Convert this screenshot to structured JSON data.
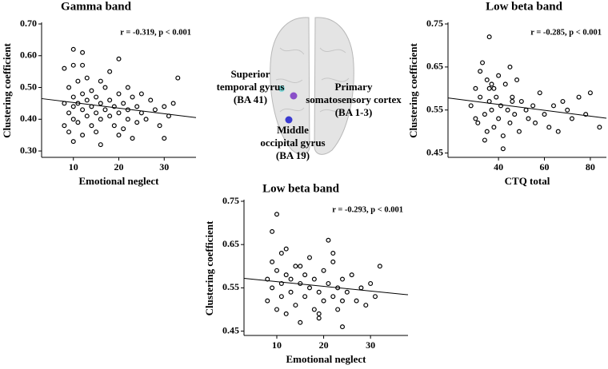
{
  "chart_data": [
    {
      "type": "scatter",
      "title": "Gamma band",
      "xlabel": "Emotional neglect",
      "ylabel": "Clustering coefficient",
      "annotation": "r = -0.319, p < 0.001",
      "x": [
        8,
        8,
        8,
        9,
        9,
        9,
        10,
        10,
        10,
        10,
        10,
        11,
        11,
        11,
        12,
        12,
        12,
        12,
        13,
        13,
        13,
        14,
        14,
        14,
        15,
        15,
        15,
        16,
        16,
        16,
        17,
        17,
        18,
        18,
        18,
        19,
        19,
        20,
        20,
        20,
        21,
        21,
        22,
        22,
        22,
        23,
        23,
        24,
        24,
        25,
        25,
        26,
        27,
        28,
        29,
        30,
        30,
        31,
        32,
        33,
        10,
        12,
        16,
        20
      ],
      "values": [
        0.45,
        0.38,
        0.56,
        0.5,
        0.42,
        0.36,
        0.47,
        0.44,
        0.4,
        0.62,
        0.33,
        0.52,
        0.45,
        0.39,
        0.48,
        0.43,
        0.57,
        0.35,
        0.46,
        0.41,
        0.53,
        0.44,
        0.38,
        0.49,
        0.47,
        0.42,
        0.36,
        0.45,
        0.4,
        0.32,
        0.5,
        0.43,
        0.46,
        0.41,
        0.55,
        0.44,
        0.38,
        0.48,
        0.42,
        0.59,
        0.45,
        0.37,
        0.43,
        0.4,
        0.5,
        0.47,
        0.34,
        0.44,
        0.39,
        0.42,
        0.48,
        0.4,
        0.46,
        0.43,
        0.38,
        0.44,
        0.34,
        0.41,
        0.45,
        0.53,
        0.57,
        0.61,
        0.52,
        0.35
      ],
      "trendline": {
        "x": [
          3,
          37
        ],
        "y": [
          0.465,
          0.405
        ]
      },
      "xlim": [
        3,
        37
      ],
      "ylim": [
        0.28,
        0.7
      ],
      "xticks": [
        10,
        20,
        30
      ],
      "yticks": [
        {
          "value": 0.3,
          "label": "0.30"
        },
        {
          "value": 0.4,
          "label": "0.40"
        },
        {
          "value": 0.5,
          "label": "0.50"
        },
        {
          "value": 0.6,
          "label": "0.60"
        },
        {
          "value": 0.7,
          "label": "0.70"
        }
      ]
    },
    {
      "type": "scatter",
      "title": "Low beta band",
      "xlabel": "CTQ total",
      "ylabel": "Clustering coefficient",
      "annotation": "r = -0.285, p < 0.001",
      "x": [
        28,
        30,
        31,
        32,
        33,
        34,
        35,
        35,
        36,
        36,
        37,
        38,
        38,
        39,
        40,
        40,
        41,
        42,
        43,
        44,
        45,
        45,
        46,
        47,
        48,
        49,
        50,
        52,
        53,
        55,
        56,
        58,
        60,
        62,
        64,
        66,
        68,
        70,
        72,
        75,
        78,
        80,
        84,
        32,
        34,
        37,
        42,
        46,
        30,
        36
      ],
      "values": [
        0.56,
        0.6,
        0.52,
        0.58,
        0.66,
        0.54,
        0.62,
        0.5,
        0.57,
        0.72,
        0.55,
        0.6,
        0.51,
        0.58,
        0.63,
        0.53,
        0.56,
        0.49,
        0.61,
        0.55,
        0.65,
        0.52,
        0.58,
        0.54,
        0.62,
        0.5,
        0.57,
        0.55,
        0.53,
        0.56,
        0.52,
        0.59,
        0.54,
        0.51,
        0.56,
        0.5,
        0.57,
        0.55,
        0.53,
        0.58,
        0.54,
        0.59,
        0.51,
        0.64,
        0.48,
        0.61,
        0.46,
        0.57,
        0.53,
        0.6
      ],
      "trendline": {
        "x": [
          18,
          87
        ],
        "y": [
          0.578,
          0.531
        ]
      },
      "xlim": [
        18,
        87
      ],
      "ylim": [
        0.44,
        0.75
      ],
      "xticks": [
        40,
        60,
        80
      ],
      "yticks": [
        0.45,
        0.55,
        0.65,
        0.75
      ]
    },
    {
      "type": "scatter",
      "title": "Low beta band",
      "xlabel": "Emotional neglect",
      "ylabel": "Clustering coefficient",
      "annotation": "r = -0.293, p < 0.001",
      "x": [
        8,
        8,
        9,
        9,
        10,
        10,
        10,
        11,
        11,
        12,
        12,
        13,
        13,
        14,
        14,
        15,
        15,
        16,
        16,
        17,
        17,
        18,
        18,
        19,
        19,
        20,
        20,
        21,
        21,
        22,
        22,
        23,
        23,
        24,
        24,
        25,
        26,
        27,
        28,
        29,
        30,
        31,
        32,
        9,
        11,
        15,
        19,
        22,
        24,
        12
      ],
      "values": [
        0.57,
        0.52,
        0.61,
        0.55,
        0.59,
        0.5,
        0.72,
        0.56,
        0.53,
        0.64,
        0.49,
        0.57,
        0.54,
        0.6,
        0.51,
        0.56,
        0.47,
        0.58,
        0.53,
        0.55,
        0.62,
        0.5,
        0.57,
        0.54,
        0.48,
        0.59,
        0.52,
        0.56,
        0.66,
        0.53,
        0.61,
        0.55,
        0.5,
        0.57,
        0.46,
        0.54,
        0.58,
        0.52,
        0.55,
        0.51,
        0.56,
        0.53,
        0.6,
        0.68,
        0.63,
        0.6,
        0.49,
        0.63,
        0.52,
        0.58
      ],
      "trendline": {
        "x": [
          3,
          38
        ],
        "y": [
          0.572,
          0.534
        ]
      },
      "xlim": [
        3,
        38
      ],
      "ylim": [
        0.44,
        0.75
      ],
      "xticks": [
        10,
        20,
        30
      ],
      "yticks": [
        0.45,
        0.55,
        0.65,
        0.75
      ]
    }
  ],
  "brain_figure": {
    "regions": [
      {
        "lines": [
          "Superior",
          "temporal gyrus",
          "(BA 41)"
        ]
      },
      {
        "lines": [
          "Primary",
          "somatosensory cortex",
          "(BA 1-3)"
        ]
      },
      {
        "lines": [
          "Middle",
          "occipital gyrus",
          "(BA 19)"
        ]
      }
    ]
  }
}
